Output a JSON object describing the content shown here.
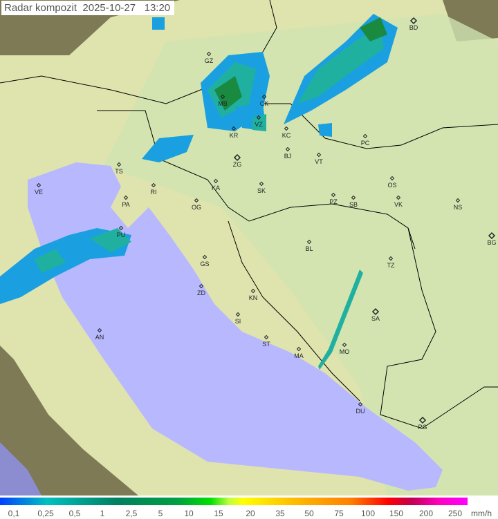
{
  "title": "Radar kompozit  2025-10-27   13:20",
  "legend": {
    "labels": [
      "0,1",
      "0,25",
      "0,5",
      "1",
      "2,5",
      "5",
      "10",
      "15",
      "20",
      "35",
      "50",
      "75",
      "100",
      "150",
      "200",
      "250"
    ],
    "unit": "mm/h"
  },
  "colors": {
    "land": "#d8e6a8",
    "sea": "#b8b8ff",
    "outside": "#8a8a5a",
    "rain_light": "#1aa0e0",
    "rain_mid": "#20b0a0",
    "rain_heavy": "#1a8a40"
  },
  "cities": [
    "BD",
    "GZ",
    "MB",
    "CK",
    "KR",
    "VZ",
    "KC",
    "PC",
    "BJ",
    "ZG",
    "VT",
    "TS",
    "VE",
    "RI",
    "KA",
    "SK",
    "OS",
    "PA",
    "OG",
    "PZ",
    "SB",
    "VK",
    "NS",
    "PU",
    "BG",
    "BL",
    "GS",
    "TZ",
    "ZD",
    "KN",
    "SA",
    "SI",
    "AN",
    "ST",
    "MA",
    "MO",
    "DU",
    "PG"
  ]
}
